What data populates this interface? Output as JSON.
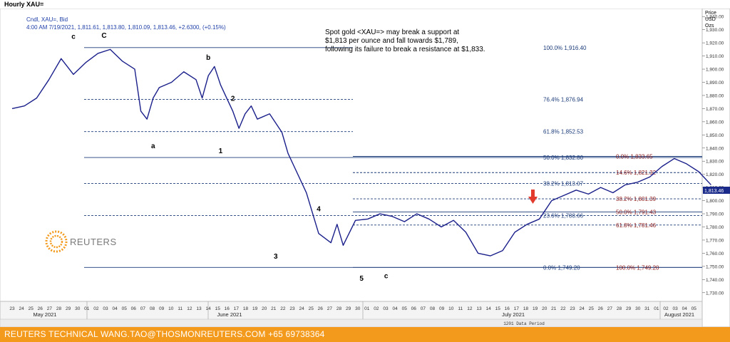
{
  "window": {
    "title": "Hourly XAU="
  },
  "footer": {
    "text": "REUTERS TECHNICAL  WANG.TAO@THOSMONREUTERS.COM  +65 69738364"
  },
  "chart_data": {
    "type": "line",
    "legend_line1": "Cndl, XAU=, Bid",
    "legend_line2": "4:00 AM 7/19/2021, 1,811.61, 1,813.80, 1,810.09, 1,813.46, +2.6300, (+0.15%)",
    "annotation": "Spot gold <XAU=> may break a support at $1,813 per ounce and fall towards $1,789, following its failure to break a resistance at $1,833.",
    "logo": "REUTERS",
    "y_axis_title": [
      "Price",
      "USD",
      "Ozs"
    ],
    "ylim": [
      1725,
      1945
    ],
    "yticks": [
      1730,
      1740,
      1750,
      1760,
      1770,
      1780,
      1790,
      1800,
      1810,
      1820,
      1830,
      1840,
      1850,
      1860,
      1870,
      1880,
      1890,
      1900,
      1910,
      1920,
      1930,
      1940
    ],
    "ytick_labels": [
      "1,730.00",
      "1,740.00",
      "1,750.00",
      "1,760.00",
      "1,770.00",
      "1,780.00",
      "1,790.00",
      "1,800.00",
      "1,810.00",
      "1,820.00",
      "1,830.00",
      "1,840.00",
      "1,850.00",
      "1,860.00",
      "1,870.00",
      "1,880.00",
      "1,890.00",
      "1,900.00",
      "1,910.00",
      "1,920.00",
      "1,930.00",
      "1,940.00"
    ],
    "current_price": "1,813.46",
    "x_day_labels": [
      "23",
      "24",
      "25",
      "26",
      "27",
      "28",
      "29",
      "30",
      "01",
      "02",
      "03",
      "04",
      "05",
      "06",
      "07",
      "08",
      "09",
      "10",
      "11",
      "12",
      "13",
      "14",
      "15",
      "16",
      "17",
      "18",
      "19",
      "20",
      "21",
      "22",
      "23",
      "24",
      "25",
      "26",
      "27",
      "28",
      "29",
      "30",
      "01",
      "02",
      "03",
      "04",
      "05",
      "06",
      "07",
      "08",
      "09",
      "10",
      "11",
      "12",
      "13",
      "14",
      "15",
      "16",
      "17",
      "18",
      "19",
      "20",
      "21",
      "22",
      "23",
      "24",
      "25",
      "26",
      "27",
      "28",
      "29",
      "30",
      "31",
      "01",
      "02",
      "03",
      "04",
      "05"
    ],
    "x_month_labels": [
      "May 2021",
      "June 2021",
      "July 2021",
      "August 2021"
    ],
    "data_period": "1201 Data Period",
    "price_series": [
      [
        0,
        1870
      ],
      [
        1,
        1872
      ],
      [
        2,
        1878
      ],
      [
        3,
        1892
      ],
      [
        4,
        1908
      ],
      [
        5,
        1896
      ],
      [
        6,
        1905
      ],
      [
        7,
        1912
      ],
      [
        8,
        1915
      ],
      [
        9,
        1906
      ],
      [
        10,
        1900
      ],
      [
        10.5,
        1868
      ],
      [
        11,
        1862
      ],
      [
        11.5,
        1878
      ],
      [
        12,
        1886
      ],
      [
        13,
        1890
      ],
      [
        14,
        1898
      ],
      [
        15,
        1892
      ],
      [
        15.5,
        1878
      ],
      [
        16,
        1895
      ],
      [
        16.5,
        1902
      ],
      [
        17,
        1888
      ],
      [
        17.5,
        1878
      ],
      [
        18,
        1868
      ],
      [
        18.5,
        1855
      ],
      [
        19,
        1866
      ],
      [
        19.5,
        1872
      ],
      [
        20,
        1862
      ],
      [
        21,
        1866
      ],
      [
        22,
        1852
      ],
      [
        22.5,
        1836
      ],
      [
        23,
        1826
      ],
      [
        24,
        1806
      ],
      [
        25,
        1775
      ],
      [
        26,
        1768
      ],
      [
        26.5,
        1782
      ],
      [
        27,
        1766
      ],
      [
        28,
        1785
      ],
      [
        29,
        1786
      ],
      [
        30,
        1790
      ],
      [
        31,
        1788
      ],
      [
        32,
        1784
      ],
      [
        33,
        1790
      ],
      [
        34,
        1786
      ],
      [
        35,
        1780
      ],
      [
        36,
        1785
      ],
      [
        37,
        1776
      ],
      [
        38,
        1760
      ],
      [
        39,
        1758
      ],
      [
        40,
        1762
      ],
      [
        41,
        1776
      ],
      [
        42,
        1782
      ],
      [
        43,
        1786
      ],
      [
        44,
        1800
      ],
      [
        45,
        1804
      ],
      [
        46,
        1808
      ],
      [
        47,
        1805
      ],
      [
        48,
        1810
      ],
      [
        49,
        1806
      ],
      [
        50,
        1812
      ],
      [
        51,
        1814
      ],
      [
        52,
        1818
      ],
      [
        53,
        1826
      ],
      [
        54,
        1832
      ],
      [
        55,
        1828
      ],
      [
        56,
        1822
      ],
      [
        57,
        1812
      ]
    ],
    "fib_left": {
      "levels": [
        {
          "pct": "100.0%",
          "value": "1,916.40",
          "price": 1916.4
        },
        {
          "pct": "76.4%",
          "value": "1,876.94",
          "price": 1876.94
        },
        {
          "pct": "61.8%",
          "value": "1,852.53",
          "price": 1852.53
        },
        {
          "pct": "50.0%",
          "value": "1,832.80",
          "price": 1832.8
        },
        {
          "pct": "38.2%",
          "value": "1,813.07",
          "price": 1813.07
        },
        {
          "pct": "23.6%",
          "value": "1,788.66",
          "price": 1788.66
        },
        {
          "pct": "0.0%",
          "value": "1,749.20",
          "price": 1749.2
        }
      ]
    },
    "fib_right": {
      "levels": [
        {
          "pct": "0.0%",
          "value": "1,833.65",
          "price": 1833.65
        },
        {
          "pct": "14.6%",
          "value": "1,821.32",
          "price": 1821.32
        },
        {
          "pct": "38.2%",
          "value": "1,801.39",
          "price": 1801.39
        },
        {
          "pct": "50.0%",
          "value": "1,791.43",
          "price": 1791.43
        },
        {
          "pct": "61.8%",
          "value": "1,781.46",
          "price": 1781.46
        },
        {
          "pct": "100.0%",
          "value": "1,749.20",
          "price": 1749.2
        }
      ]
    },
    "wave_labels": [
      {
        "text": "c",
        "day": 5,
        "price": 1923
      },
      {
        "text": "C",
        "day": 7.5,
        "price": 1924
      },
      {
        "text": "a",
        "day": 11.5,
        "price": 1840
      },
      {
        "text": "b",
        "day": 16,
        "price": 1907
      },
      {
        "text": "2",
        "day": 18,
        "price": 1876
      },
      {
        "text": "1",
        "day": 17,
        "price": 1836
      },
      {
        "text": "4",
        "day": 25,
        "price": 1792
      },
      {
        "text": "3",
        "day": 21.5,
        "price": 1756
      },
      {
        "text": "5",
        "day": 28.5,
        "price": 1739
      },
      {
        "text": "c",
        "day": 30.5,
        "price": 1741
      }
    ]
  }
}
